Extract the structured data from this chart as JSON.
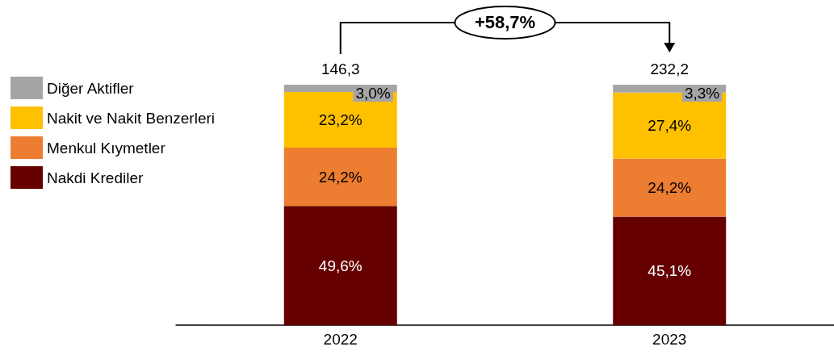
{
  "chart_data": {
    "type": "bar",
    "stacked": true,
    "categories": [
      "2022",
      "2023"
    ],
    "series": [
      {
        "name": "Nakdi Krediler",
        "color": "#660000",
        "values": [
          49.6,
          45.1
        ],
        "value_labels": [
          "49,6%",
          "45,1%"
        ]
      },
      {
        "name": "Menkul Kıymetler",
        "color": "#ed7d31",
        "values": [
          24.2,
          24.2
        ],
        "value_labels": [
          "24,2%",
          "24,2%"
        ]
      },
      {
        "name": "Nakit ve Nakit Benzerleri",
        "color": "#ffc000",
        "values": [
          23.2,
          27.4
        ],
        "value_labels": [
          "23,2%",
          "27,4%"
        ]
      },
      {
        "name": "Diğer Aktifler",
        "color": "#a5a5a5",
        "values": [
          3.0,
          3.3
        ],
        "value_labels": [
          "3,0%",
          "3,3%"
        ]
      }
    ],
    "annotations": [
      "+58,7%",
      {
        "text": "146,3",
        "x": "2022",
        "y": 100
      },
      {
        "text": "232,2",
        "x": "2023",
        "y": 100
      }
    ],
    "legend": "left",
    "grid": false
  }
}
